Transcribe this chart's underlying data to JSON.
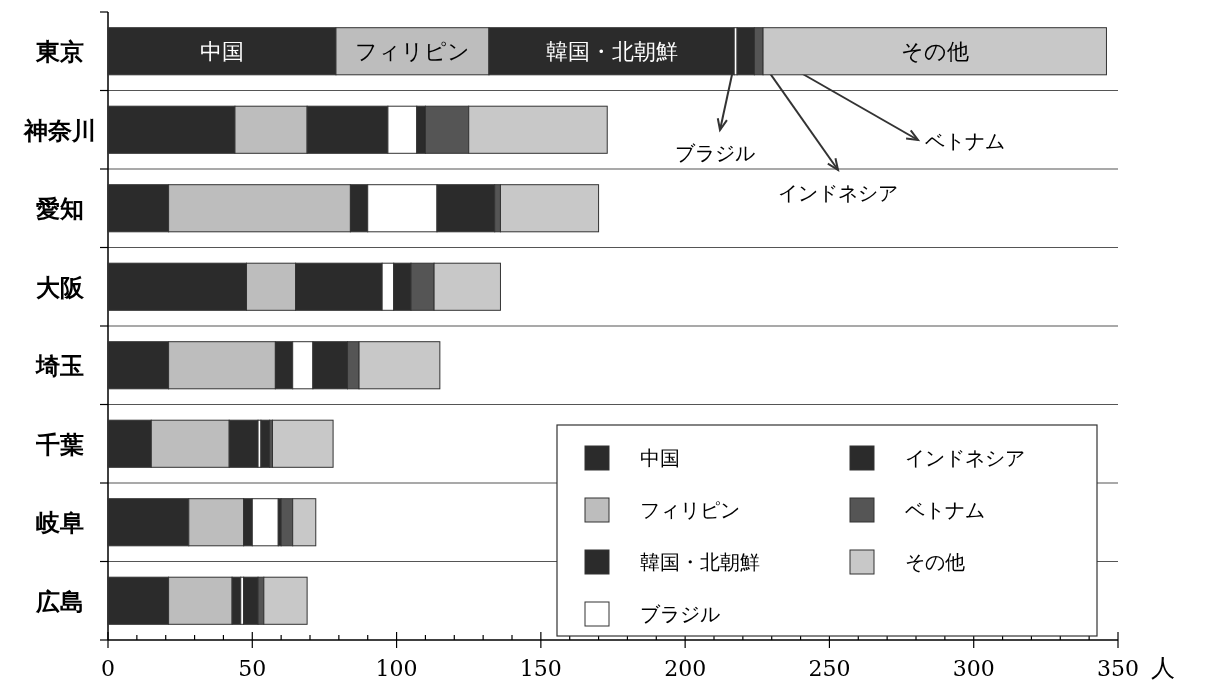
{
  "chart_data": {
    "type": "bar",
    "orientation": "horizontal",
    "stacked": true,
    "xlabel": "人",
    "categories": [
      "東京",
      "神奈川",
      "愛知",
      "大阪",
      "埼玉",
      "千葉",
      "岐阜",
      "広島"
    ],
    "series": [
      {
        "name": "中国",
        "color": "#2b2b2b",
        "values": [
          79,
          44,
          21,
          48,
          21,
          15,
          28,
          21
        ]
      },
      {
        "name": "フィリピン",
        "color": "#bdbdbd",
        "values": [
          53,
          25,
          63,
          17,
          37,
          27,
          19,
          22
        ]
      },
      {
        "name": "韓国・北朝鮮",
        "color": "#2b2b2b",
        "values": [
          85,
          28,
          6,
          30,
          6,
          10,
          3,
          3
        ]
      },
      {
        "name": "ブラジル",
        "color": "#ffffff",
        "values": [
          1,
          10,
          24,
          4,
          7,
          1,
          9,
          1
        ]
      },
      {
        "name": "インドネシア",
        "color": "#2b2b2b",
        "values": [
          6,
          3,
          20,
          6,
          12,
          3,
          1,
          5
        ]
      },
      {
        "name": "ベトナム",
        "color": "#555555",
        "values": [
          3,
          15,
          2,
          8,
          4,
          1,
          4,
          2
        ]
      },
      {
        "name": "その他",
        "color": "#c8c8c8",
        "values": [
          119,
          48,
          34,
          23,
          28,
          21,
          8,
          15
        ]
      }
    ],
    "xlim": [
      0,
      350
    ],
    "xticks": [
      0,
      {
        "value": 10,
        "label": null
      },
      {
        "value": 20,
        "label": null
      },
      {
        "value": 30,
        "label": null
      },
      {
        "value": 40,
        "label": null
      },
      50,
      {
        "value": 60,
        "label": null
      },
      {
        "value": 70,
        "label": null
      },
      {
        "value": 80,
        "label": null
      },
      {
        "value": 90,
        "label": null
      },
      100,
      {
        "value": 110,
        "label": null
      },
      {
        "value": 120,
        "label": null
      },
      {
        "value": 130,
        "label": null
      },
      {
        "value": 140,
        "label": null
      },
      150,
      {
        "value": 160,
        "label": null
      },
      {
        "value": 170,
        "label": null
      },
      {
        "value": 180,
        "label": null
      },
      {
        "value": 190,
        "label": null
      },
      200,
      {
        "value": 210,
        "label": null
      },
      {
        "value": 220,
        "label": null
      },
      {
        "value": 230,
        "label": null
      },
      {
        "value": 240,
        "label": null
      },
      250,
      {
        "value": 260,
        "label": null
      },
      {
        "value": 270,
        "label": null
      },
      {
        "value": 280,
        "label": null
      },
      {
        "value": 290,
        "label": null
      },
      300,
      {
        "value": 310,
        "label": null
      },
      {
        "value": 320,
        "label": null
      },
      {
        "value": 330,
        "label": null
      },
      {
        "value": 340,
        "label": null
      },
      350
    ],
    "grid": "y",
    "legend": "bottom right",
    "annotations": [
      "中国",
      "フィリピン",
      "韓国・北朝鮮",
      "その他",
      {
        "text": "ブラジル",
        "x": 218,
        "y": "東京"
      },
      {
        "text": "インドネシア",
        "x": 224,
        "y": "東京"
      },
      {
        "text": "ベトナム",
        "x": 227,
        "y": "東京"
      }
    ]
  }
}
